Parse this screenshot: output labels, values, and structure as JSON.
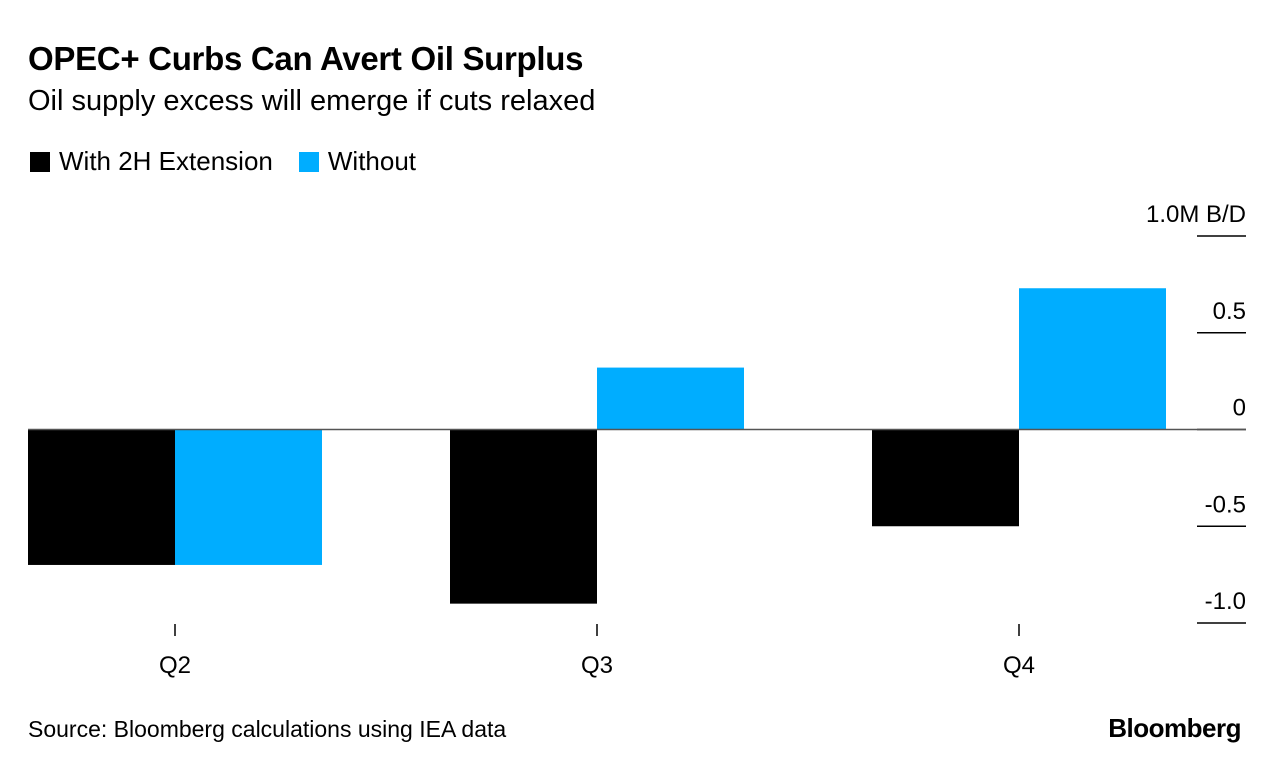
{
  "chart_data": {
    "type": "bar",
    "title": "OPEC+ Curbs Can Avert Oil Surplus",
    "subtitle": "Oil supply excess will emerge if cuts relaxed",
    "categories": [
      "Q2",
      "Q3",
      "Q4"
    ],
    "series": [
      {
        "name": "With 2H Extension",
        "color": "#000000",
        "values": [
          -0.7,
          -0.9,
          -0.5
        ]
      },
      {
        "name": "Without",
        "color": "#00adff",
        "values": [
          -0.7,
          0.32,
          0.73
        ]
      }
    ],
    "ylim": [
      -1.0,
      1.0
    ],
    "yticks": [
      1.0,
      0.5,
      0,
      -0.5,
      -1.0
    ],
    "ytick_labels": [
      "1.0M B/D",
      "0.5",
      "0",
      "-0.5",
      "-1.0"
    ],
    "xlabel": "",
    "ylabel": "M B/D",
    "legend_position": "top-left"
  },
  "footer": {
    "source": "Source: Bloomberg calculations using IEA data",
    "brand": "Bloomberg"
  }
}
